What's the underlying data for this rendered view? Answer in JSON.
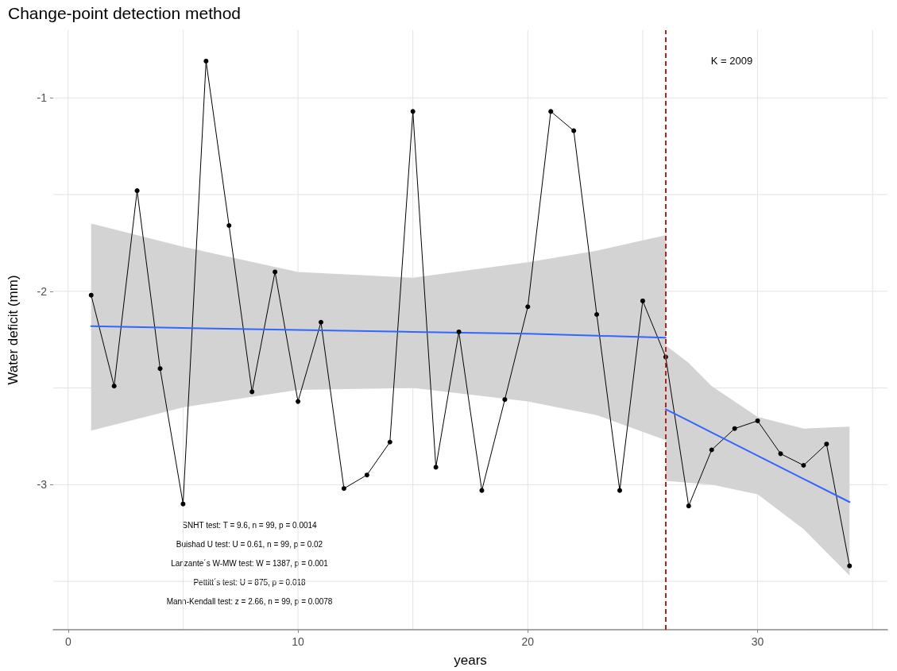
{
  "chart_data": {
    "type": "line",
    "title": "Change-point detection method",
    "xlabel": "years",
    "ylabel": "Water deficit (mm)",
    "xlim": [
      -0.65,
      35.65
    ],
    "ylim": [
      -3.75,
      -0.65
    ],
    "xticks": [
      0,
      {
        "value": 5,
        "label": null
      },
      10,
      {
        "value": 15,
        "label": null
      },
      20,
      {
        "value": 25,
        "label": null
      },
      30,
      {
        "value": 35,
        "label": null
      }
    ],
    "yticks": [
      {
        "value": -3.5,
        "label": null
      },
      -3,
      {
        "value": -2.5,
        "label": null
      },
      -2,
      {
        "value": -1.5,
        "label": null
      },
      -1
    ],
    "grid": true,
    "series": [
      {
        "color": "#000000",
        "marker": "circle",
        "line_style": "solid",
        "x": [
          1,
          2,
          3,
          4,
          5,
          6,
          7,
          8,
          9,
          10,
          11,
          12,
          13,
          14,
          15,
          16,
          17,
          18,
          19,
          20,
          21,
          22,
          23,
          24,
          25,
          26,
          27,
          28,
          29,
          30,
          31,
          32,
          33,
          34
        ],
        "values": [
          -2.02,
          -2.49,
          -1.48,
          -2.4,
          -3.1,
          -0.81,
          -1.66,
          -2.52,
          -1.9,
          -2.57,
          -2.16,
          -3.02,
          -2.95,
          -2.78,
          -1.07,
          -2.91,
          -2.21,
          -3.03,
          -2.56,
          -2.08,
          -1.07,
          -1.17,
          -2.12,
          -3.03,
          -2.05,
          -2.34,
          -3.11,
          -2.82,
          -2.71,
          -2.67,
          -2.84,
          -2.9,
          -2.79,
          -3.42
        ]
      },
      {
        "color": "#3366ff",
        "marker": "none",
        "line_style": "solid",
        "x": [
          1,
          5,
          10,
          15,
          20,
          23,
          26
        ],
        "values": [
          -2.18,
          -2.19,
          -2.2,
          -2.21,
          -2.22,
          -2.23,
          -2.24
        ],
        "lower": [
          -2.72,
          -2.6,
          -2.51,
          -2.5,
          -2.57,
          -2.64,
          -2.77
        ],
        "upper": [
          -1.65,
          -1.77,
          -1.9,
          -1.93,
          -1.85,
          -1.79,
          -1.71
        ]
      },
      {
        "color": "#3366ff",
        "marker": "none",
        "line_style": "solid",
        "x": [
          26,
          27,
          28,
          30,
          32,
          34
        ],
        "values": [
          -2.61,
          -2.67,
          -2.73,
          -2.85,
          -2.97,
          -3.09
        ],
        "lower": [
          -2.98,
          -2.99,
          -3.0,
          -3.05,
          -3.23,
          -3.47
        ],
        "upper": [
          -2.28,
          -2.37,
          -2.49,
          -2.65,
          -2.71,
          -2.7
        ]
      }
    ],
    "ref_lines": [
      {
        "axis": "x",
        "value": 26,
        "color": "#b22222",
        "line_style": "dashed"
      }
    ],
    "annotations": [
      "K = 2009",
      "SNHT test: T = 9.6, n = 99, p = 0.0014",
      "Buishad U test: U = 0.61, n = 99, p = 0.02",
      "Lanzante´s W-MW test: W = 1387, p = 0.001",
      "Pettitt´s test: U = 875, p = 0.018",
      "Mann-Kendall test: z = 2.66, n = 99, p = 0.0078"
    ]
  }
}
